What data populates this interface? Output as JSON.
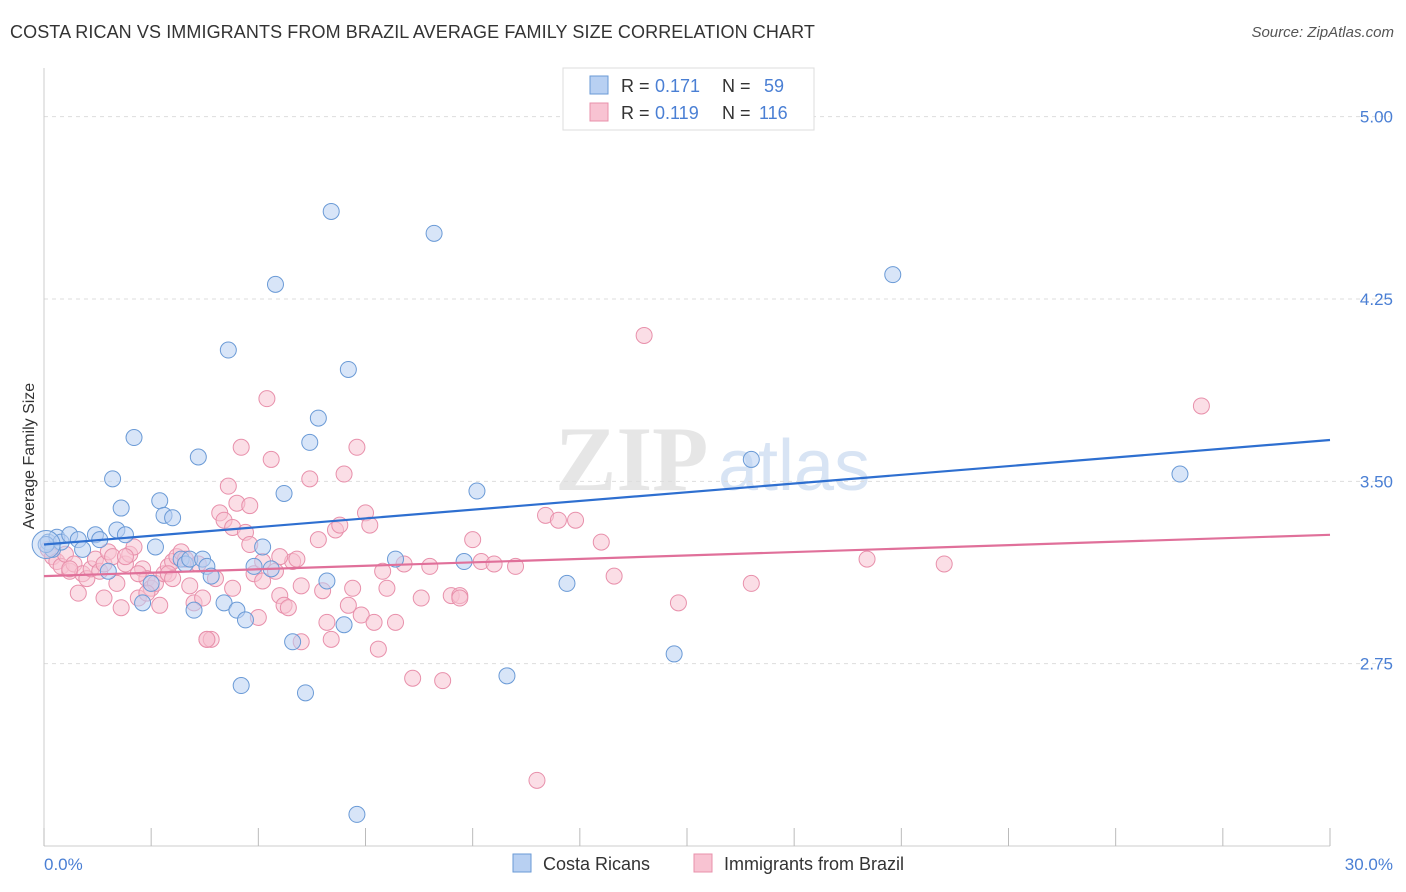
{
  "title": "COSTA RICAN VS IMMIGRANTS FROM BRAZIL AVERAGE FAMILY SIZE CORRELATION CHART",
  "source": "Source: ZipAtlas.com",
  "watermark": {
    "zip": "ZIP",
    "atlas": "atlas"
  },
  "legend_top": [
    {
      "r_label": "R =",
      "r_value": "0.171",
      "n_label": "N =",
      "n_value": "59"
    },
    {
      "r_label": "R =",
      "r_value": "0.119",
      "n_label": "N =",
      "n_value": "116"
    }
  ],
  "colors": {
    "blue_fill": "#b8d0f2",
    "blue_stroke": "#6a9ad6",
    "blue_line": "#2e6fd0",
    "pink_fill": "#f8c3d2",
    "pink_stroke": "#e890ab",
    "pink_line": "#e0709a",
    "axis_text": "#4a7fd4",
    "grid": "#dddddd"
  },
  "chart_data": {
    "type": "scatter",
    "title": "COSTA RICAN VS IMMIGRANTS FROM BRAZIL AVERAGE FAMILY SIZE CORRELATION CHART",
    "xlabel": "",
    "ylabel": "Average Family Size",
    "xlim": [
      0,
      30
    ],
    "ylim": [
      2.0,
      5.2
    ],
    "x_tick_labels": [
      "0.0%",
      "30.0%"
    ],
    "y_ticks": [
      2.75,
      3.5,
      4.25,
      5.0
    ],
    "y_tick_labels": [
      "2.75",
      "3.50",
      "4.25",
      "5.00"
    ],
    "grid": true,
    "legend": "bottom-center",
    "series": [
      {
        "name": "Costa Ricans",
        "r": 0.171,
        "n": 59,
        "trend": {
          "x": [
            0,
            30
          ],
          "y": [
            3.24,
            3.67
          ]
        },
        "points": [
          [
            0.1,
            3.25
          ],
          [
            0.2,
            3.22
          ],
          [
            0.3,
            3.27
          ],
          [
            0.4,
            3.25
          ],
          [
            0.6,
            3.28
          ],
          [
            0.8,
            3.26
          ],
          [
            0.9,
            3.22
          ],
          [
            1.2,
            3.28
          ],
          [
            1.3,
            3.26
          ],
          [
            1.5,
            3.13
          ],
          [
            1.6,
            3.51
          ],
          [
            1.7,
            3.3
          ],
          [
            1.8,
            3.39
          ],
          [
            1.9,
            3.28
          ],
          [
            2.1,
            3.68
          ],
          [
            2.3,
            3.0
          ],
          [
            2.5,
            3.08
          ],
          [
            2.6,
            3.23
          ],
          [
            2.7,
            3.42
          ],
          [
            2.8,
            3.36
          ],
          [
            3.0,
            3.35
          ],
          [
            3.2,
            3.18
          ],
          [
            3.3,
            3.16
          ],
          [
            3.4,
            3.18
          ],
          [
            3.5,
            2.97
          ],
          [
            3.6,
            3.6
          ],
          [
            3.7,
            3.18
          ],
          [
            3.8,
            3.15
          ],
          [
            3.9,
            3.11
          ],
          [
            4.2,
            3.0
          ],
          [
            4.3,
            4.04
          ],
          [
            4.5,
            2.97
          ],
          [
            4.6,
            2.66
          ],
          [
            4.7,
            2.93
          ],
          [
            4.9,
            3.15
          ],
          [
            5.1,
            3.23
          ],
          [
            5.3,
            3.14
          ],
          [
            5.4,
            4.31
          ],
          [
            5.6,
            3.45
          ],
          [
            5.8,
            2.84
          ],
          [
            6.1,
            2.63
          ],
          [
            6.2,
            3.66
          ],
          [
            6.4,
            3.76
          ],
          [
            6.6,
            3.09
          ],
          [
            6.7,
            4.61
          ],
          [
            7.0,
            2.91
          ],
          [
            7.1,
            3.96
          ],
          [
            7.3,
            2.13
          ],
          [
            8.2,
            3.18
          ],
          [
            9.1,
            4.52
          ],
          [
            9.8,
            3.17
          ],
          [
            10.1,
            3.46
          ],
          [
            10.8,
            2.7
          ],
          [
            12.2,
            3.08
          ],
          [
            14.7,
            2.79
          ],
          [
            16.5,
            3.59
          ],
          [
            19.8,
            4.35
          ],
          [
            26.5,
            3.53
          ],
          [
            0.05,
            3.24
          ]
        ]
      },
      {
        "name": "Immigrants from Brazil",
        "r": 0.119,
        "n": 116,
        "trend": {
          "x": [
            0,
            30
          ],
          "y": [
            3.11,
            3.28
          ]
        },
        "points": [
          [
            0.1,
            3.22
          ],
          [
            0.2,
            3.19
          ],
          [
            0.3,
            3.17
          ],
          [
            0.4,
            3.15
          ],
          [
            0.5,
            3.2
          ],
          [
            0.6,
            3.13
          ],
          [
            0.7,
            3.16
          ],
          [
            0.8,
            3.04
          ],
          [
            0.9,
            3.12
          ],
          [
            1.0,
            3.1
          ],
          [
            1.1,
            3.14
          ],
          [
            1.2,
            3.18
          ],
          [
            1.3,
            3.13
          ],
          [
            1.4,
            3.16
          ],
          [
            1.5,
            3.21
          ],
          [
            1.6,
            3.19
          ],
          [
            1.7,
            3.08
          ],
          [
            1.8,
            2.98
          ],
          [
            1.9,
            3.16
          ],
          [
            2.0,
            3.2
          ],
          [
            2.1,
            3.23
          ],
          [
            2.2,
            3.02
          ],
          [
            2.3,
            3.14
          ],
          [
            2.4,
            3.1
          ],
          [
            2.5,
            3.06
          ],
          [
            2.6,
            3.08
          ],
          [
            2.7,
            2.99
          ],
          [
            2.8,
            3.12
          ],
          [
            2.9,
            3.15
          ],
          [
            3.0,
            3.17
          ],
          [
            3.1,
            3.19
          ],
          [
            3.2,
            3.21
          ],
          [
            3.3,
            3.18
          ],
          [
            3.4,
            3.07
          ],
          [
            3.5,
            3.0
          ],
          [
            3.6,
            3.16
          ],
          [
            3.7,
            3.02
          ],
          [
            3.8,
            2.85
          ],
          [
            3.9,
            2.85
          ],
          [
            4.0,
            3.1
          ],
          [
            4.1,
            3.37
          ],
          [
            4.2,
            3.34
          ],
          [
            4.3,
            3.48
          ],
          [
            4.4,
            3.31
          ],
          [
            4.5,
            3.41
          ],
          [
            4.6,
            3.64
          ],
          [
            4.7,
            3.29
          ],
          [
            4.8,
            3.4
          ],
          [
            4.9,
            3.12
          ],
          [
            5.0,
            2.94
          ],
          [
            5.1,
            3.09
          ],
          [
            5.2,
            3.84
          ],
          [
            5.3,
            3.59
          ],
          [
            5.4,
            3.13
          ],
          [
            5.5,
            3.03
          ],
          [
            5.6,
            2.99
          ],
          [
            5.7,
            2.98
          ],
          [
            5.8,
            3.17
          ],
          [
            5.9,
            3.18
          ],
          [
            6.0,
            3.07
          ],
          [
            6.2,
            3.51
          ],
          [
            6.4,
            3.26
          ],
          [
            6.5,
            3.05
          ],
          [
            6.6,
            2.92
          ],
          [
            6.7,
            2.85
          ],
          [
            6.8,
            3.3
          ],
          [
            6.9,
            3.32
          ],
          [
            7.0,
            3.53
          ],
          [
            7.1,
            2.99
          ],
          [
            7.2,
            3.06
          ],
          [
            7.3,
            3.64
          ],
          [
            7.4,
            2.95
          ],
          [
            7.5,
            3.37
          ],
          [
            7.6,
            3.32
          ],
          [
            7.7,
            2.92
          ],
          [
            7.8,
            2.81
          ],
          [
            8.0,
            3.06
          ],
          [
            8.2,
            2.92
          ],
          [
            8.4,
            3.16
          ],
          [
            8.6,
            2.69
          ],
          [
            8.8,
            3.02
          ],
          [
            9.0,
            3.15
          ],
          [
            9.3,
            2.68
          ],
          [
            9.5,
            3.03
          ],
          [
            9.7,
            3.03
          ],
          [
            10.0,
            3.26
          ],
          [
            10.2,
            3.17
          ],
          [
            10.5,
            3.16
          ],
          [
            11.0,
            3.15
          ],
          [
            11.5,
            2.27
          ],
          [
            11.7,
            3.36
          ],
          [
            12.0,
            3.34
          ],
          [
            12.4,
            3.34
          ],
          [
            13.0,
            3.25
          ],
          [
            13.3,
            3.11
          ],
          [
            14.0,
            4.1
          ],
          [
            14.8,
            3.0
          ],
          [
            16.5,
            3.08
          ],
          [
            19.2,
            3.18
          ],
          [
            21.0,
            3.16
          ],
          [
            27.0,
            3.81
          ],
          [
            3.8,
            2.85
          ],
          [
            2.4,
            3.04
          ],
          [
            1.9,
            3.19
          ],
          [
            6.0,
            2.84
          ],
          [
            5.1,
            3.17
          ],
          [
            2.9,
            3.12
          ],
          [
            4.4,
            3.06
          ],
          [
            9.7,
            3.02
          ],
          [
            3.0,
            3.1
          ],
          [
            0.6,
            3.14
          ],
          [
            1.4,
            3.02
          ],
          [
            2.2,
            3.12
          ],
          [
            5.5,
            3.19
          ],
          [
            7.9,
            3.13
          ],
          [
            4.8,
            3.24
          ]
        ]
      }
    ]
  }
}
